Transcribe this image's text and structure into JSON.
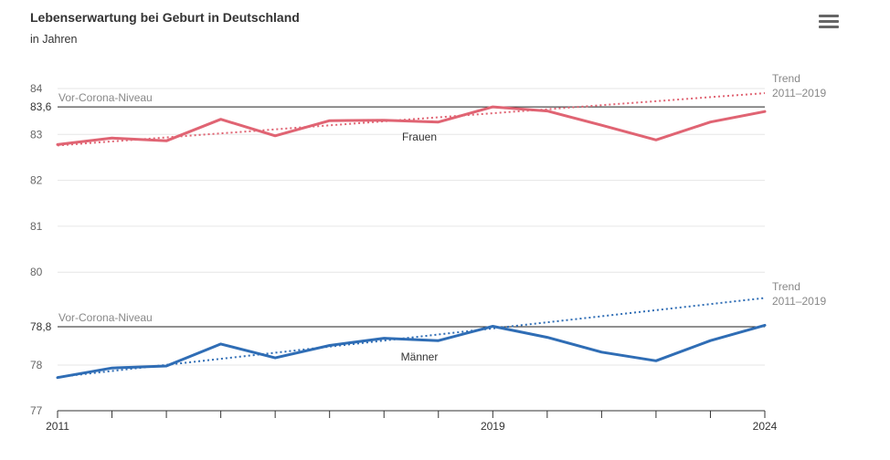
{
  "title": "Lebenserwartung bei Geburt in Deutschland",
  "subtitle": "in Jahren",
  "menu_icon": "hamburger-menu-icon",
  "chart_data": {
    "type": "line",
    "x": [
      2011,
      2012,
      2013,
      2014,
      2015,
      2016,
      2017,
      2018,
      2019,
      2020,
      2021,
      2022,
      2023,
      2024
    ],
    "series": [
      {
        "name": "Frauen",
        "color": "#e06473",
        "values": [
          82.78,
          82.92,
          82.86,
          83.33,
          82.97,
          83.3,
          83.31,
          83.27,
          83.6,
          83.51,
          83.2,
          82.88,
          83.27,
          83.5
        ]
      },
      {
        "name": "Männer",
        "color": "#2f6db5",
        "values": [
          77.74,
          77.94,
          77.98,
          78.44,
          78.15,
          78.41,
          78.56,
          78.51,
          78.81,
          78.58,
          78.27,
          78.09,
          78.51,
          78.83
        ]
      }
    ],
    "trends": [
      {
        "label_line1": "Trend",
        "label_line2": "2011–2019",
        "color": "#e06473",
        "from": [
          2011,
          82.76
        ],
        "to": [
          2024,
          83.9
        ]
      },
      {
        "label_line1": "Trend",
        "label_line2": "2011–2019",
        "color": "#2f6db5",
        "from": [
          2011,
          77.75
        ],
        "to": [
          2024,
          79.4
        ]
      }
    ],
    "reference_lines": [
      {
        "label": "Vor-Corona-Niveau",
        "value": 83.6,
        "tick_label": "83,6"
      },
      {
        "label": "Vor-Corona-Niveau",
        "value": 78.8,
        "tick_label": "78,8"
      }
    ],
    "y_ticks": [
      {
        "value": 84,
        "label": "84"
      },
      {
        "value": 83,
        "label": "83"
      },
      {
        "value": 82,
        "label": "82"
      },
      {
        "value": 81,
        "label": "81"
      },
      {
        "value": 80,
        "label": "80"
      },
      {
        "value": 78,
        "label": "78"
      },
      {
        "value": 77,
        "label": "77"
      }
    ],
    "x_ticks": [
      2011,
      2012,
      2013,
      2014,
      2015,
      2016,
      2017,
      2018,
      2019,
      2020,
      2021,
      2022,
      2023,
      2024
    ],
    "x_tick_labels": [
      {
        "value": 2011,
        "label": "2011"
      },
      {
        "value": 2019,
        "label": "2019"
      },
      {
        "value": 2024,
        "label": "2024"
      }
    ],
    "ylim": [
      77,
      84
    ],
    "xlim": [
      2011,
      2024
    ],
    "grid": true
  }
}
